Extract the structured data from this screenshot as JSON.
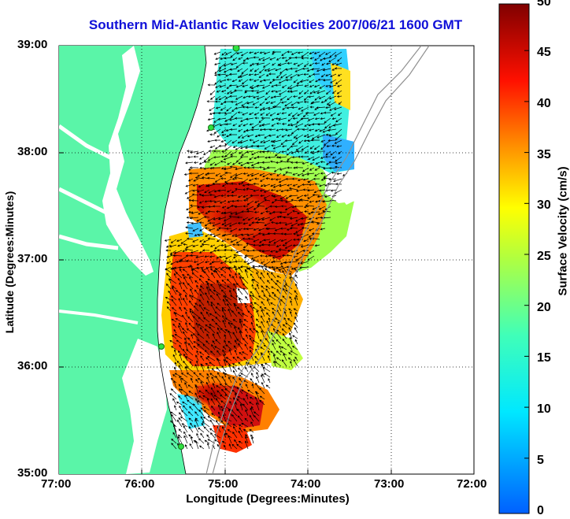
{
  "title": "Southern Mid-Atlantic Raw Velocities 2007/06/21 1600 GMT",
  "map": {
    "x_label": "Longitude (Degrees:Minutes)",
    "y_label": "Latitude (Degrees:Minutes)",
    "lon_ticks": [
      "77:00",
      "76:00",
      "75:00",
      "74:00",
      "73:00",
      "72:00"
    ],
    "lat_ticks": [
      "39:00",
      "38:00",
      "37:00",
      "36:00",
      "35:00"
    ],
    "lon_range": [
      -77,
      -72
    ],
    "lat_range": [
      35,
      39
    ],
    "land_color": "#5af5a8",
    "water_color": "#ffffff"
  },
  "colorbar": {
    "label": "Surface Velocity (cm/s)",
    "ticks": [
      "0",
      "5",
      "10",
      "15",
      "20",
      "25",
      "30",
      "35",
      "40",
      "45",
      "50"
    ],
    "range": [
      0,
      50
    ],
    "colormap": "jet"
  }
}
